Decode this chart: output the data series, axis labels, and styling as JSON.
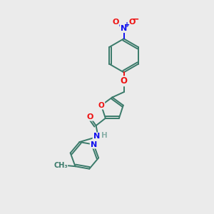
{
  "background_color": "#ebebeb",
  "bond_color": "#3a7a6a",
  "atom_colors": {
    "O": "#ee1111",
    "N": "#1111ee",
    "C": "#3a7a6a",
    "H": "#8ab0a8"
  },
  "lw": 1.4
}
